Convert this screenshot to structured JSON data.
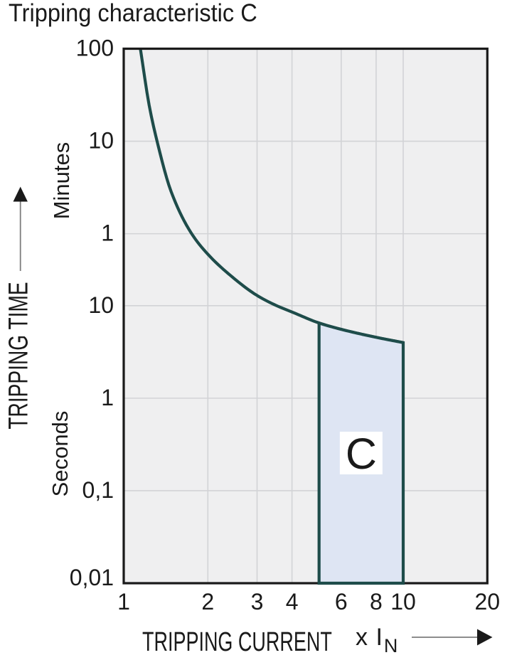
{
  "chart_data": {
    "type": "line",
    "title": "Tripping characteristic C",
    "x_axis": {
      "label": "TRIPPING CURRENT",
      "unit": "x I",
      "unit_sub": "N",
      "scale": "log",
      "range": [
        1,
        20
      ],
      "ticks": [
        {
          "v": 1,
          "label": "1"
        },
        {
          "v": 2,
          "label": "2"
        },
        {
          "v": 3,
          "label": "3"
        },
        {
          "v": 4,
          "label": "4"
        },
        {
          "v": 6,
          "label": "6"
        },
        {
          "v": 8,
          "label": "8"
        },
        {
          "v": 10,
          "label": "10"
        },
        {
          "v": 20,
          "label": "20"
        }
      ],
      "gridlines": [
        2,
        3,
        4,
        6,
        8,
        10
      ]
    },
    "y_axis": {
      "label": "TRIPPING TIME",
      "scale": "log",
      "range_seconds": [
        0.01,
        6000
      ],
      "unit_top": "Minutes",
      "unit_bottom": "Seconds",
      "ticks": [
        {
          "seconds": 6000,
          "label": "100"
        },
        {
          "seconds": 600,
          "label": "10"
        },
        {
          "seconds": 60,
          "label": "1"
        },
        {
          "seconds": 10,
          "label": "10"
        },
        {
          "seconds": 1,
          "label": "1"
        },
        {
          "seconds": 0.1,
          "label": "0,1"
        },
        {
          "seconds": 0.01,
          "label": "0,01"
        }
      ],
      "gridlines_seconds": [
        600,
        60,
        10,
        1,
        0.1
      ]
    },
    "series": [
      {
        "name": "tripping-curve-C",
        "points": [
          [
            1.147,
            6000
          ],
          [
            1.234,
            1450
          ],
          [
            1.316,
            600
          ],
          [
            1.479,
            170
          ],
          [
            1.75,
            60
          ],
          [
            2.0,
            36
          ],
          [
            2.42,
            21
          ],
          [
            3.0,
            12.9
          ],
          [
            3.5,
            10.1
          ],
          [
            4.0,
            8.55
          ],
          [
            5.0,
            6.5
          ],
          [
            6.0,
            5.55
          ],
          [
            8.0,
            4.55
          ],
          [
            10.0,
            3.99
          ]
        ]
      }
    ],
    "band": {
      "label": "C",
      "x_from": 5,
      "x_to": 10,
      "bottom_seconds": 0.01
    },
    "colors": {
      "curve": "#1e4c4a",
      "band_fill": "#dee5f3",
      "plot_bg": "#efeff0",
      "grid": "#d2d3d6",
      "axis": "#1a1a1a",
      "text": "#1a1a1a",
      "arrow_line": "#7d7d7d"
    }
  }
}
